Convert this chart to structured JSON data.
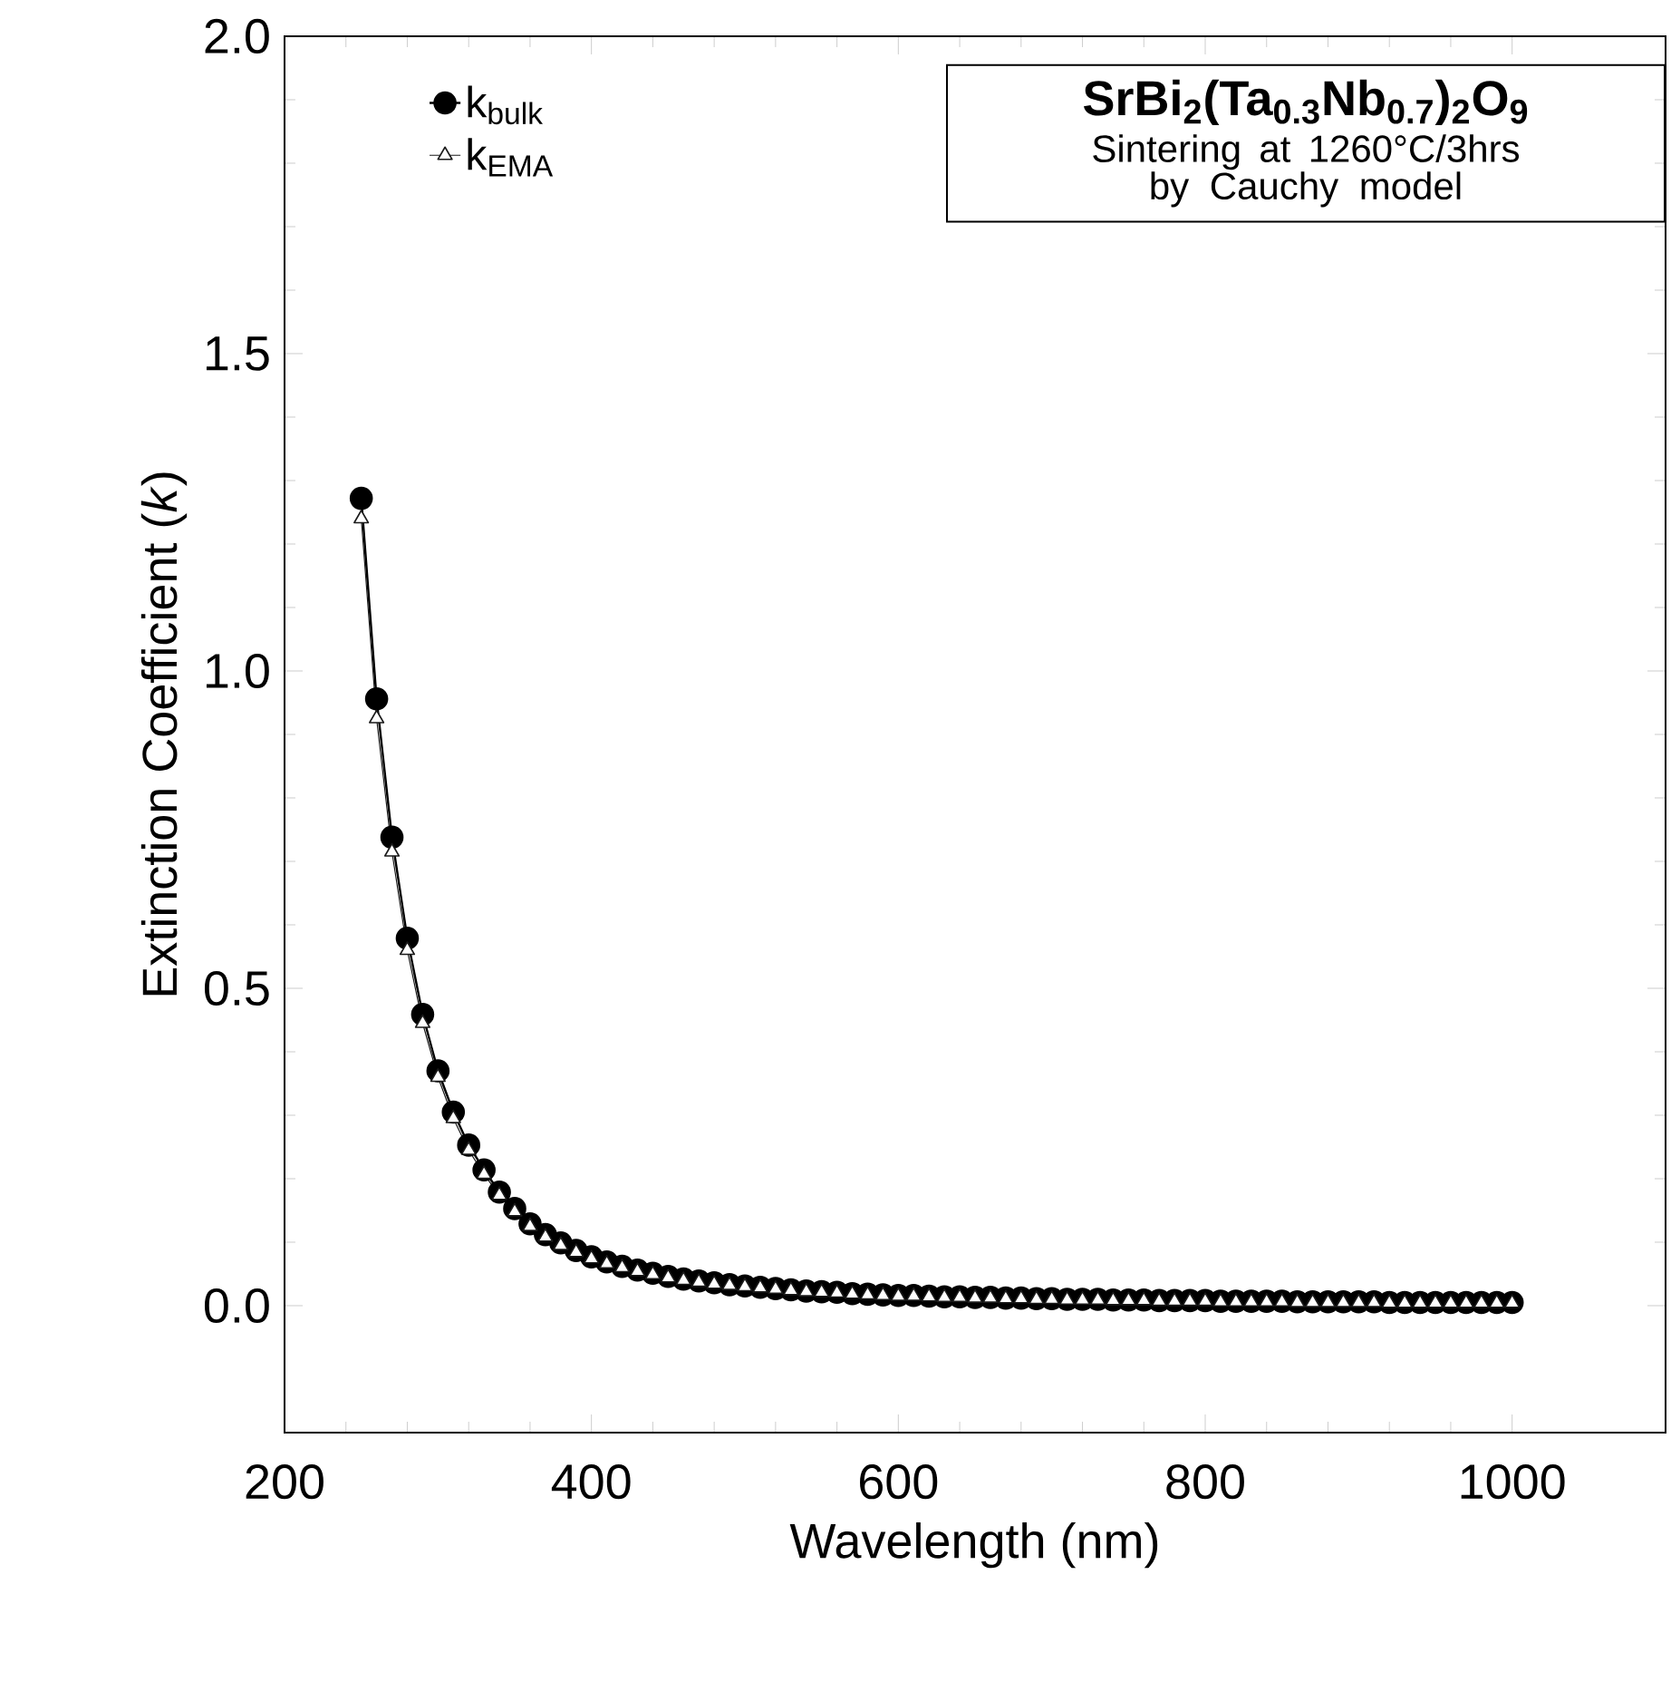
{
  "chart_data": {
    "type": "line",
    "title": "SrBi$_{2}$(Ta$_{0.3}$Nb$_{0.7}$)$_{2}$O$_{9}$",
    "subtitle": "Sintering at 1260°C/3hrs by Cauchy model",
    "xlabel": "Wavelength (nm)",
    "ylabel": "Extinction Coefficient (*k*)",
    "x": [
      250,
      260,
      270,
      280,
      290,
      300,
      310,
      320,
      330,
      340,
      350,
      360,
      370,
      380,
      390,
      400,
      410,
      420,
      430,
      440,
      450,
      460,
      470,
      480,
      490,
      500,
      510,
      520,
      530,
      540,
      550,
      560,
      570,
      580,
      590,
      600,
      610,
      620,
      630,
      640,
      650,
      660,
      670,
      680,
      690,
      700,
      710,
      720,
      730,
      740,
      750,
      760,
      770,
      780,
      790,
      800,
      810,
      820,
      830,
      840,
      850,
      860,
      870,
      880,
      890,
      900,
      910,
      920,
      930,
      940,
      950,
      960,
      970,
      980,
      990,
      1000
    ],
    "series": [
      {
        "name": "k$_{bulk}$",
        "color": "#000000",
        "marker": "circle",
        "values": [
          1.272,
          0.956,
          0.738,
          0.579,
          0.459,
          0.37,
          0.305,
          0.253,
          0.214,
          0.179,
          0.153,
          0.129,
          0.112,
          0.099,
          0.087,
          0.077,
          0.069,
          0.062,
          0.056,
          0.051,
          0.046,
          0.042,
          0.039,
          0.036,
          0.033,
          0.031,
          0.029,
          0.027,
          0.025,
          0.023,
          0.022,
          0.021,
          0.019,
          0.018,
          0.017,
          0.016,
          0.016,
          0.015,
          0.014,
          0.014,
          0.013,
          0.013,
          0.012,
          0.012,
          0.011,
          0.011,
          0.01,
          0.01,
          0.01,
          0.009,
          0.009,
          0.009,
          0.008,
          0.008,
          0.008,
          0.008,
          0.007,
          0.007,
          0.007,
          0.007,
          0.007,
          0.006,
          0.006,
          0.006,
          0.006,
          0.006,
          0.006,
          0.005,
          0.005,
          0.005,
          0.005,
          0.005,
          0.005,
          0.005,
          0.005,
          0.005
        ]
      },
      {
        "name": "k$_{EMA}$",
        "color": "#1a1a1a",
        "marker": "triangle",
        "values": [
          1.24,
          0.925,
          0.715,
          0.56,
          0.445,
          0.36,
          0.295,
          0.245,
          0.207,
          0.174,
          0.148,
          0.125,
          0.108,
          0.095,
          0.084,
          0.074,
          0.066,
          0.06,
          0.054,
          0.049,
          0.044,
          0.04,
          0.037,
          0.034,
          0.032,
          0.03,
          0.028,
          0.026,
          0.024,
          0.022,
          0.021,
          0.02,
          0.018,
          0.017,
          0.016,
          0.015,
          0.015,
          0.014,
          0.013,
          0.013,
          0.012,
          0.012,
          0.011,
          0.011,
          0.01,
          0.01,
          0.009,
          0.009,
          0.009,
          0.008,
          0.008,
          0.008,
          0.007,
          0.007,
          0.007,
          0.007,
          0.006,
          0.006,
          0.006,
          0.006,
          0.006,
          0.005,
          0.005,
          0.005,
          0.005,
          0.005,
          0.005,
          0.004,
          0.004,
          0.004,
          0.004,
          0.004,
          0.004,
          0.004,
          0.004,
          0.004
        ]
      }
    ],
    "xlim": [
      200,
      1100
    ],
    "xticks": [
      200,
      400,
      600,
      800,
      1000
    ],
    "ylim": [
      -0.2,
      2.0
    ],
    "yticks": [
      {
        "value": 0,
        "label": "0.0"
      },
      {
        "value": 0.5,
        "label": "0.5"
      },
      {
        "value": 1.0,
        "label": "1.0"
      },
      {
        "value": 1.5,
        "label": "1.5"
      },
      {
        "value": 2.0,
        "label": "2.0"
      }
    ],
    "legend": "top left",
    "grid": false,
    "line_style": "solid"
  }
}
